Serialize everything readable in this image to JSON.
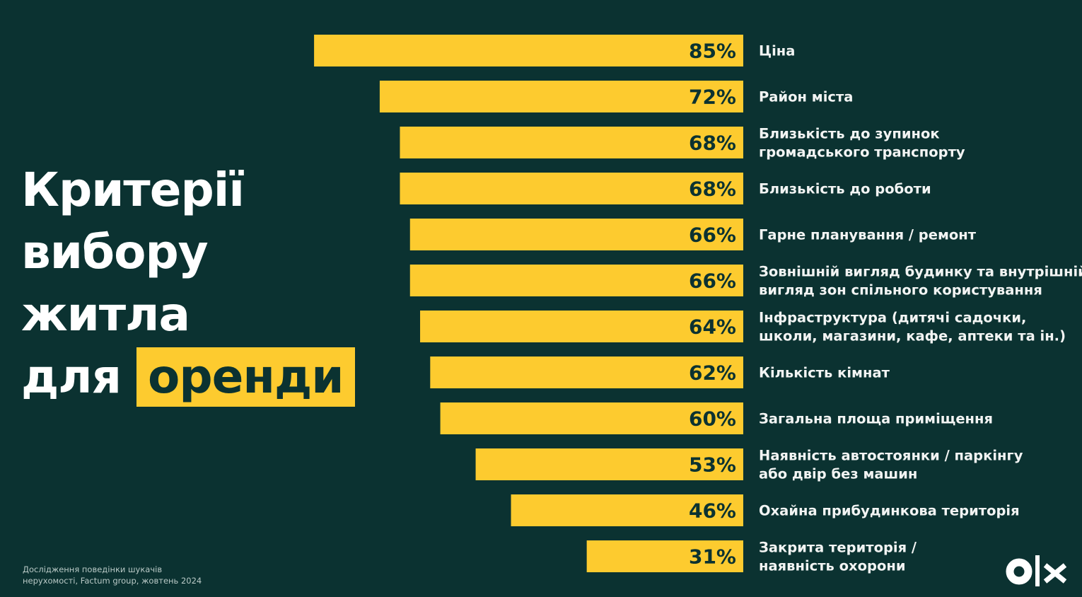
{
  "title": {
    "line1": "Критерії",
    "line2": "вибору",
    "line3": "житла",
    "line4_prefix": "для",
    "line4_highlight": "оренди"
  },
  "source": {
    "line1": "Дослідження поведінки шукачів",
    "line2": "нерухомості, Factum group, жовтень 2024"
  },
  "logo": "olx",
  "colors": {
    "background": "#0b3231",
    "bar": "#fdcb2f",
    "text": "#f2f4f3"
  },
  "chart_data": {
    "type": "bar",
    "orientation": "horizontal",
    "unit": "%",
    "xlim": [
      0,
      100
    ],
    "grid": false,
    "categories": [
      [
        "Ціна"
      ],
      [
        "Район міста"
      ],
      [
        "Близькість до зупинок",
        "громадського транспорту"
      ],
      [
        "Близькість до роботи"
      ],
      [
        "Гарне планування / ремонт"
      ],
      [
        "Зовнішній вигляд будинку та внутрішній",
        "вигляд зон спільного користування"
      ],
      [
        "Інфраструктура (дитячі садочки,",
        "школи, магазини, кафе, аптеки та ін.)"
      ],
      [
        "Кількість кімнат"
      ],
      [
        "Загальна площа приміщення"
      ],
      [
        "Наявність автостоянки / паркінгу",
        "або двір без машин"
      ],
      [
        "Охайна прибудинкова територія"
      ],
      [
        "Закрита територія /",
        "наявність охорони"
      ]
    ],
    "values": [
      85,
      72,
      68,
      68,
      66,
      66,
      64,
      62,
      60,
      53,
      46,
      31
    ],
    "data_labels": [
      "85%",
      "72%",
      "68%",
      "68%",
      "66%",
      "66%",
      "64%",
      "62%",
      "60%",
      "53%",
      "46%",
      "31%"
    ]
  }
}
